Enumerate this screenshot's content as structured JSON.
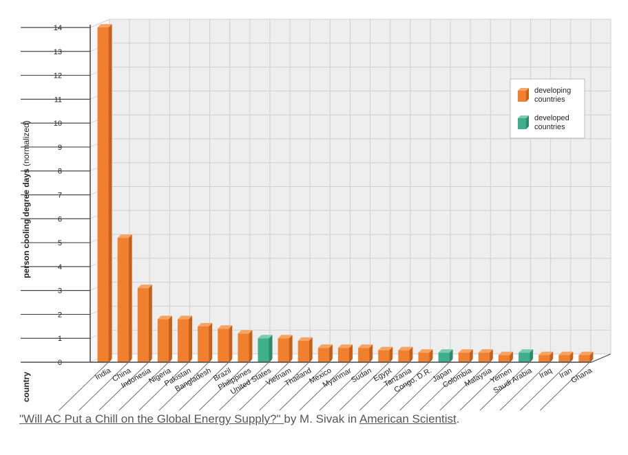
{
  "chart_data": {
    "type": "bar",
    "ylabel_bold": "person cooling degree days",
    "ylabel_normal": "(normalized)",
    "xlabel": "country",
    "ylim": [
      0,
      14
    ],
    "yticks": [
      0,
      1,
      2,
      3,
      4,
      5,
      6,
      7,
      8,
      9,
      10,
      11,
      12,
      13,
      14
    ],
    "grid": true,
    "legend_position": "top-right",
    "legend": [
      {
        "label_line1": "developing",
        "label_line2": "countries",
        "color": "#f07f2e"
      },
      {
        "label_line1": "developed",
        "label_line2": "countries",
        "color": "#3fae8a"
      }
    ],
    "categories": [
      "India",
      "China",
      "Indonesia",
      "Nigeria",
      "Pakistan",
      "Bangladesh",
      "Brazil",
      "Philippines",
      "United States",
      "Vietnam",
      "Thailand",
      "Mexico",
      "Myanmar",
      "Sudan",
      "Egypt",
      "Tanzania",
      "Congo, D.R.",
      "Japan",
      "Colombia",
      "Malaysia",
      "Yemen",
      "Saudi Arabia",
      "Iraq",
      "Iran",
      "Ghana"
    ],
    "values": [
      14.0,
      5.2,
      3.1,
      1.8,
      1.8,
      1.5,
      1.4,
      1.2,
      1.0,
      1.0,
      0.9,
      0.6,
      0.6,
      0.6,
      0.5,
      0.5,
      0.4,
      0.4,
      0.4,
      0.4,
      0.3,
      0.4,
      0.3,
      0.3,
      0.3
    ],
    "groups": [
      "developing",
      "developing",
      "developing",
      "developing",
      "developing",
      "developing",
      "developing",
      "developing",
      "developed",
      "developing",
      "developing",
      "developing",
      "developing",
      "developing",
      "developing",
      "developing",
      "developing",
      "developed",
      "developing",
      "developing",
      "developing",
      "developed",
      "developing",
      "developing",
      "developing"
    ]
  },
  "colors": {
    "developing": "#f07f2e",
    "developing_dark": "#c8601a",
    "developing_top": "#f6a463",
    "developed": "#3fae8a",
    "developed_dark": "#2b8b6b",
    "developed_top": "#7ccbb0"
  },
  "caption": {
    "article_title": "\"Will AC Put a Chill on the Global Energy Supply?\" ",
    "by_text": "by M. Sivak in ",
    "publication": "American Scientist",
    "end": "."
  }
}
